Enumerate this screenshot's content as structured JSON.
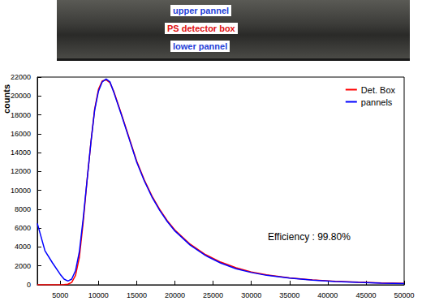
{
  "photo_labels": [
    {
      "text": "upper pannel",
      "color": "#1f3fd8"
    },
    {
      "text": "PS detector box",
      "color": "#e01010"
    },
    {
      "text": "lower pannel",
      "color": "#1f3fd8"
    }
  ],
  "chart_data": {
    "type": "line",
    "y_label": "counts",
    "annotation": "Efficiency : 99.80%",
    "x": [
      2000,
      3000,
      4000,
      5000,
      5500,
      6000,
      6500,
      7000,
      7500,
      8000,
      8500,
      9000,
      9500,
      10000,
      10500,
      11000,
      11500,
      12000,
      13000,
      14000,
      15000,
      16000,
      17000,
      18000,
      19000,
      20000,
      22000,
      24000,
      26000,
      28000,
      30000,
      32000,
      35000,
      38000,
      41000,
      44000,
      47000,
      50000
    ],
    "series": [
      {
        "name": "Det. Box",
        "color": "#ff0000",
        "values": [
          0,
          0,
          0,
          0,
          20,
          60,
          250,
          1000,
          2900,
          6600,
          11000,
          15000,
          18600,
          20700,
          21600,
          21700,
          21400,
          20500,
          18100,
          15600,
          13100,
          11100,
          9400,
          8000,
          6800,
          5800,
          4300,
          3200,
          2400,
          1800,
          1350,
          1050,
          730,
          520,
          370,
          270,
          200,
          150
        ]
      },
      {
        "name": "pannels",
        "color": "#0000ff",
        "values": [
          6500,
          3600,
          2300,
          1100,
          600,
          400,
          600,
          1500,
          3500,
          7000,
          11000,
          15000,
          18500,
          20500,
          21500,
          21800,
          21500,
          20400,
          18000,
          15500,
          13000,
          11000,
          9300,
          7900,
          6700,
          5700,
          4200,
          3100,
          2300,
          1700,
          1300,
          1000,
          700,
          500,
          350,
          250,
          180,
          130
        ]
      }
    ],
    "xlim": [
      2000,
      50000
    ],
    "xticks": [
      5000,
      10000,
      15000,
      20000,
      25000,
      30000,
      35000,
      40000,
      45000,
      50000
    ],
    "ylim": [
      0,
      22000
    ],
    "yticks": [
      0,
      2000,
      4000,
      6000,
      8000,
      10000,
      12000,
      14000,
      16000,
      18000,
      20000,
      22000
    ],
    "grid": false,
    "legend": "top-right"
  }
}
